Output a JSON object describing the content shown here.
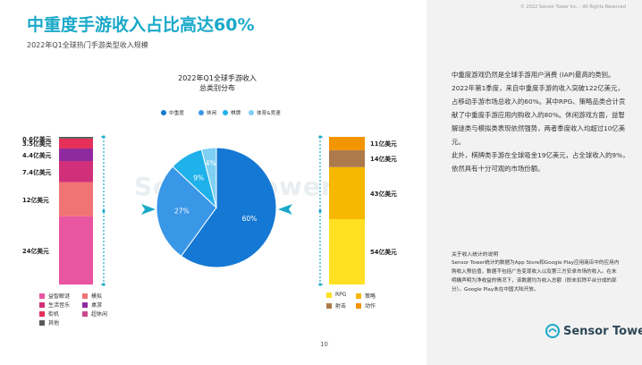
{
  "header": {
    "title": "中重度手游收入占比高达60%",
    "subtitle": "2022年Q1全球热门手游类型收入规模",
    "copyright": "© 2022 Sensor Tower Inc. - All Rights Reserved"
  },
  "summary": {
    "paragraphs": [
      "中重度游戏仍然是全球手游用户消费 (IAP)最高的类别。2022年第1季度，来自中重度手游的收入突破122亿美元，占移动手游市场总收入的60%。其中RPG、策略品类合计贡献了中重度手游应用内购收入的80%。休闲游戏方面，益智解谜类与模拟类表现依然强势，两者季度收入均超过10亿美元。",
      "此外，棋牌类手游在全球吸金19亿美元，占全球收入的9%，依然具有十分可观的市场份额。"
    ]
  },
  "note": {
    "title": "关于收入统计的说明",
    "body": "Sensor Tower统计的数据为App Store和Google Play应用商店中的应用内购收入预估值，数据不包括广告变现收入以及第三方安卓市场的收入。在未明确声明为净收益的情况下，该数据均为收入总额（即未扣除平台分成的部分）。Google Play未在中国大陆开放。"
  },
  "footer": {
    "page_number": "10",
    "brand": "Sensor Tower"
  },
  "watermark": "Sensor Tower",
  "colors": {
    "accent": "#1aa9c9",
    "pie": [
      "#1478d4",
      "#3a97e8",
      "#1fb1ea",
      "#7fd0f3"
    ],
    "left_bar": [
      "#e855a0",
      "#f07474",
      "#d12f7a",
      "#8e2a9e",
      "#e5315a",
      "#595959"
    ],
    "right_bar": [
      "#ffe022",
      "#f6b800",
      "#ad7a4c",
      "#f29500"
    ]
  },
  "chart_data": [
    {
      "type": "pie",
      "title": "2022年Q1全球手游收入\n总类别分布",
      "legend_position": "top",
      "slices": [
        {
          "name": "中重度",
          "value": 60,
          "label": "60%"
        },
        {
          "name": "休闲",
          "value": 27,
          "label": "27%"
        },
        {
          "name": "棋牌",
          "value": 9,
          "label": "9%"
        },
        {
          "name": "体育&竞速",
          "value": 4,
          "label": "4%"
        }
      ]
    },
    {
      "type": "bar",
      "stacked": true,
      "unit": "亿美元",
      "segments": [
        {
          "name": "益智解谜",
          "value": 24,
          "label": "24亿美元"
        },
        {
          "name": "模拟",
          "value": 12,
          "label": "12亿美元"
        },
        {
          "name": "生活音乐",
          "value": 7.4,
          "label": "7.4亿美元"
        },
        {
          "name": "桌游",
          "value": 4.4,
          "label": "4.4亿美元"
        },
        {
          "name": "街机",
          "value": 3.5,
          "label": "3.5亿美元"
        },
        {
          "name": "超休闲",
          "value": 0,
          "label": ""
        },
        {
          "name": "其他",
          "value": 0.6,
          "label": "0.6亿美元"
        }
      ]
    },
    {
      "type": "bar",
      "stacked": true,
      "unit": "亿美元",
      "segments": [
        {
          "name": "RPG",
          "value": 54,
          "label": "54亿美元"
        },
        {
          "name": "策略",
          "value": 43,
          "label": "43亿美元"
        },
        {
          "name": "射击",
          "value": 14,
          "label": "14亿美元"
        },
        {
          "name": "动作",
          "value": 11,
          "label": "11亿美元"
        }
      ]
    }
  ]
}
